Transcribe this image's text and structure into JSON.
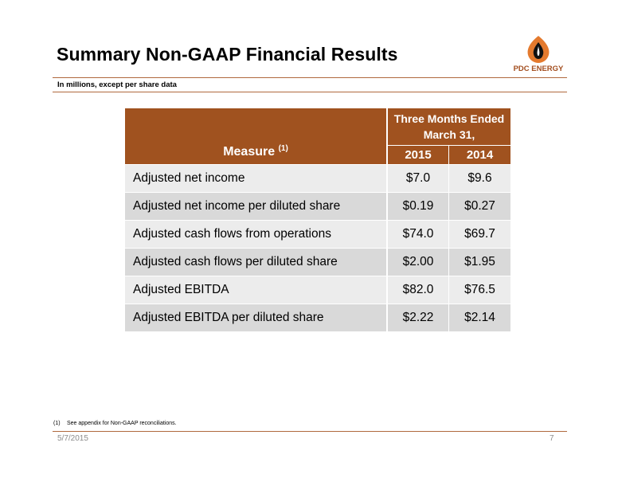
{
  "slide": {
    "title": "Summary Non-GAAP Financial Results",
    "subtitle": "In millions, except per share data",
    "logo_text": "PDC ENERGY",
    "footnote_number": "(1)",
    "footnote_text": "See appendix for Non-GAAP reconciliations.",
    "date": "5/7/2015",
    "page_number": "7"
  },
  "colors": {
    "accent": "#a0521f",
    "row_light": "#ececec",
    "row_dark": "#d9d9d9",
    "logo_flame": "#e47a2e",
    "logo_drop": "#111111"
  },
  "table": {
    "measure_header": "Measure",
    "measure_footnote_ref": "(1)",
    "period_header": "Three Months Ended March 31,",
    "years": [
      "2015",
      "2014"
    ],
    "rows": [
      {
        "measure": "Adjusted net income",
        "v2015": "$7.0",
        "v2014": "$9.6"
      },
      {
        "measure": "Adjusted net income per diluted share",
        "v2015": "$0.19",
        "v2014": "$0.27"
      },
      {
        "measure": "Adjusted cash flows from operations",
        "v2015": "$74.0",
        "v2014": "$69.7"
      },
      {
        "measure": "Adjusted cash flows per diluted share",
        "v2015": "$2.00",
        "v2014": "$1.95"
      },
      {
        "measure": "Adjusted EBITDA",
        "v2015": "$82.0",
        "v2014": "$76.5"
      },
      {
        "measure": "Adjusted EBITDA per diluted share",
        "v2015": "$2.22",
        "v2014": "$2.14"
      }
    ]
  }
}
